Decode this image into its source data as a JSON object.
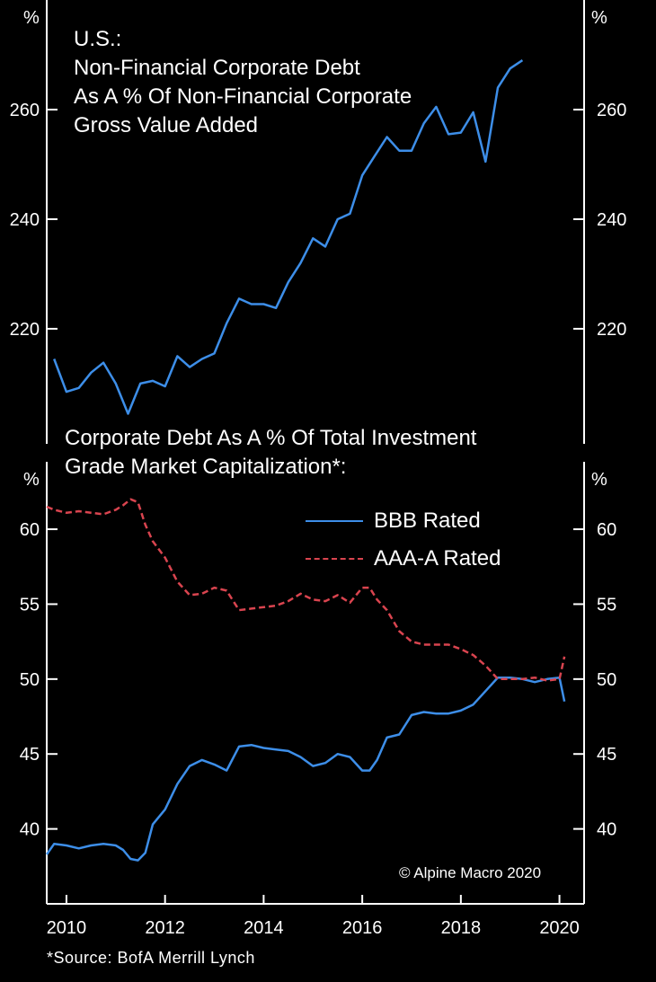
{
  "chart_data": [
    {
      "type": "line",
      "title_lines": [
        "U.S.:",
        "Non-Financial Corporate Debt",
        "As A % Of Non-Financial Corporate",
        "Gross Value Added"
      ],
      "ylabel": "%",
      "ylabel_right": "%",
      "ylim": [
        199,
        280
      ],
      "yticks": [
        220,
        240,
        260
      ],
      "x_range": [
        2009.6,
        2020.5
      ],
      "series": [
        {
          "name": "Non-Financial Corporate Debt / GVA",
          "color": "#3d8ee8",
          "x": [
            2009.75,
            2010.0,
            2010.25,
            2010.5,
            2010.75,
            2011.0,
            2011.25,
            2011.5,
            2011.75,
            2012.0,
            2012.25,
            2012.5,
            2012.75,
            2013.0,
            2013.25,
            2013.5,
            2013.75,
            2014.0,
            2014.25,
            2014.5,
            2014.75,
            2015.0,
            2015.25,
            2015.5,
            2015.75,
            2016.0,
            2016.25,
            2016.5,
            2016.75,
            2017.0,
            2017.25,
            2017.5,
            2017.75,
            2018.0,
            2018.25,
            2018.5,
            2018.75,
            2019.0,
            2019.25
          ],
          "values": [
            214.5,
            208.5,
            209.2,
            212.0,
            213.8,
            210.0,
            204.5,
            210.0,
            210.5,
            209.5,
            215.0,
            213.0,
            214.5,
            215.5,
            221.0,
            225.5,
            224.5,
            224.5,
            223.8,
            228.5,
            232.0,
            236.5,
            235.0,
            240.0,
            241.0,
            248.0,
            251.5,
            255.0,
            252.5,
            252.5,
            257.5,
            260.5,
            255.5,
            255.8,
            259.5,
            250.5,
            264.0,
            267.5,
            269.0
          ]
        }
      ]
    },
    {
      "type": "line",
      "title_lines": [
        "Corporate Debt As A % Of Total Investment",
        "Grade Market Capitalization*:"
      ],
      "ylabel": "%",
      "ylabel_right": "%",
      "ylim": [
        35,
        64.5
      ],
      "yticks": [
        40,
        45,
        50,
        55,
        60
      ],
      "x_range": [
        2009.6,
        2020.5
      ],
      "xticks": [
        2010,
        2012,
        2014,
        2016,
        2018,
        2020
      ],
      "series": [
        {
          "name": "BBB Rated",
          "color": "#3d8ee8",
          "style": "solid",
          "x": [
            2009.6,
            2009.75,
            2010.0,
            2010.25,
            2010.5,
            2010.75,
            2011.0,
            2011.15,
            2011.3,
            2011.45,
            2011.6,
            2011.75,
            2012.0,
            2012.25,
            2012.5,
            2012.75,
            2013.0,
            2013.25,
            2013.5,
            2013.75,
            2014.0,
            2014.25,
            2014.5,
            2014.75,
            2015.0,
            2015.25,
            2015.5,
            2015.75,
            2016.0,
            2016.15,
            2016.3,
            2016.5,
            2016.75,
            2017.0,
            2017.25,
            2017.5,
            2017.75,
            2018.0,
            2018.25,
            2018.5,
            2018.75,
            2019.0,
            2019.25,
            2019.5,
            2019.75,
            2020.0,
            2020.1
          ],
          "values": [
            38.3,
            39.0,
            38.9,
            38.7,
            38.9,
            39.0,
            38.9,
            38.6,
            38.0,
            37.9,
            38.4,
            40.3,
            41.3,
            43.0,
            44.2,
            44.6,
            44.3,
            43.9,
            45.5,
            45.6,
            45.4,
            45.3,
            45.2,
            44.8,
            44.2,
            44.4,
            45.0,
            44.8,
            43.9,
            43.9,
            44.6,
            46.1,
            46.3,
            47.6,
            47.8,
            47.7,
            47.7,
            47.9,
            48.3,
            49.2,
            50.1,
            50.1,
            50.0,
            49.8,
            50.0,
            50.1,
            48.5
          ]
        },
        {
          "name": "AAA-A Rated",
          "color": "#d9444f",
          "style": "dashed",
          "x": [
            2009.6,
            2009.75,
            2010.0,
            2010.25,
            2010.5,
            2010.75,
            2011.0,
            2011.15,
            2011.3,
            2011.45,
            2011.6,
            2011.75,
            2012.0,
            2012.25,
            2012.5,
            2012.75,
            2013.0,
            2013.25,
            2013.5,
            2013.75,
            2014.0,
            2014.25,
            2014.5,
            2014.75,
            2015.0,
            2015.25,
            2015.5,
            2015.75,
            2016.0,
            2016.15,
            2016.3,
            2016.5,
            2016.75,
            2017.0,
            2017.25,
            2017.5,
            2017.75,
            2018.0,
            2018.25,
            2018.5,
            2018.75,
            2019.0,
            2019.25,
            2019.5,
            2019.75,
            2020.0,
            2020.1
          ],
          "values": [
            61.5,
            61.3,
            61.1,
            61.2,
            61.1,
            61.0,
            61.3,
            61.6,
            62.0,
            61.8,
            60.3,
            59.2,
            58.1,
            56.5,
            55.6,
            55.7,
            56.1,
            55.9,
            54.6,
            54.7,
            54.8,
            54.9,
            55.2,
            55.7,
            55.3,
            55.2,
            55.6,
            55.1,
            56.1,
            56.1,
            55.3,
            54.6,
            53.2,
            52.5,
            52.3,
            52.3,
            52.3,
            52.0,
            51.6,
            50.9,
            50.0,
            50.0,
            50.0,
            50.1,
            49.9,
            50.0,
            51.5
          ]
        }
      ]
    }
  ],
  "legend": {
    "bbb_label": "BBB Rated",
    "aaa_label": "AAA-A Rated"
  },
  "footer": {
    "source": "*Source: BofA Merrill Lynch",
    "copyright": "© Alpine Macro 2020"
  }
}
